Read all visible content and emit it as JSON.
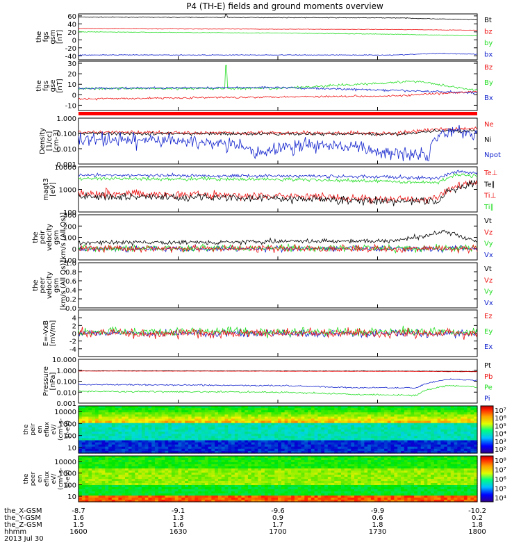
{
  "title": "P4 (TH-E) fields and ground moments overview",
  "colors": {
    "black": "#000000",
    "red": "#ee1111",
    "green": "#22dd22",
    "blue": "#1122cc",
    "darkred": "#cc0000"
  },
  "panels": [
    {
      "id": "fgs-gsm",
      "ylabel": [
        "the",
        "fgs",
        "gsm",
        "[nT]"
      ],
      "scale": "linear",
      "ylim": [
        -50,
        65
      ],
      "ticks": [
        "60",
        "40",
        "20",
        "0",
        "-20",
        "-40"
      ],
      "tick_values": [
        60,
        40,
        20,
        0,
        -20,
        -40
      ],
      "legend": [
        {
          "label": "Bt",
          "color": "#000000"
        },
        {
          "label": "bz",
          "color": "#ee1111"
        },
        {
          "label": "by",
          "color": "#22dd22"
        },
        {
          "label": "bx",
          "color": "#1122cc"
        }
      ],
      "series": [
        {
          "color": "#000000",
          "level": 57,
          "noise": 0.8,
          "drift": [
            [
              0,
              57
            ],
            [
              0.8,
              55
            ],
            [
              1,
              50
            ]
          ]
        },
        {
          "color": "#ee1111",
          "level": 27,
          "noise": 0.6,
          "drift": [
            [
              0,
              28
            ],
            [
              0.8,
              26
            ],
            [
              1,
              24
            ]
          ]
        },
        {
          "color": "#22dd22",
          "level": 20,
          "noise": 0.8,
          "drift": [
            [
              0,
              20
            ],
            [
              0.5,
              17
            ],
            [
              0.8,
              14
            ],
            [
              1,
              10
            ]
          ]
        },
        {
          "color": "#1122cc",
          "level": -38,
          "noise": 1.0,
          "drift": [
            [
              0,
              -38
            ],
            [
              0.8,
              -38
            ],
            [
              0.9,
              -34
            ],
            [
              1,
              -36
            ]
          ]
        }
      ]
    },
    {
      "id": "fgs-gse",
      "ylabel": [
        "the",
        "fgs",
        "gse",
        "[nT]"
      ],
      "scale": "linear",
      "ylim": [
        -15,
        32
      ],
      "ticks": [
        "30",
        "20",
        "10",
        "0",
        "-10"
      ],
      "tick_values": [
        30,
        20,
        10,
        0,
        -10
      ],
      "legend": [
        {
          "label": "Bz",
          "color": "#ee1111"
        },
        {
          "label": "By",
          "color": "#22dd22"
        },
        {
          "label": "Bx",
          "color": "#1122cc"
        }
      ],
      "series": [
        {
          "color": "#22dd22",
          "level": 6,
          "noise": 1.2,
          "drift": [
            [
              0,
              6
            ],
            [
              0.5,
              6
            ],
            [
              0.7,
              10
            ],
            [
              0.85,
              13
            ],
            [
              1,
              4
            ]
          ]
        },
        {
          "color": "#1122cc",
          "level": 6,
          "noise": 1.0,
          "drift": [
            [
              0,
              6
            ],
            [
              0.5,
              7
            ],
            [
              0.7,
              5
            ],
            [
              1,
              2
            ]
          ]
        },
        {
          "color": "#ee1111",
          "level": -4,
          "noise": 0.9,
          "drift": [
            [
              0,
              -4
            ],
            [
              0.5,
              -2
            ],
            [
              0.8,
              -1
            ],
            [
              1,
              3
            ]
          ]
        }
      ]
    },
    {
      "id": "density",
      "ylabel": [
        "Density",
        "[1/cc]",
        "[cm-3]"
      ],
      "scale": "log",
      "ylim": [
        0.001,
        1.0
      ],
      "ticks": [
        "1.000",
        "0.100",
        "0.010",
        "0.001"
      ],
      "tick_values": [
        1,
        0.1,
        0.01,
        0.001
      ],
      "legend": [
        {
          "label": "Ne",
          "color": "#ee1111"
        },
        {
          "label": "Ni",
          "color": "#000000"
        },
        {
          "label": "Npot",
          "color": "#1122cc"
        }
      ],
      "series": [
        {
          "color": "#ee1111",
          "level": 0.12,
          "noise": 0.25,
          "drift": [
            [
              0,
              0.12
            ],
            [
              0.8,
              0.1
            ],
            [
              0.92,
              0.2
            ],
            [
              1,
              0.2
            ]
          ]
        },
        {
          "color": "#000000",
          "level": 0.1,
          "noise": 0.2,
          "drift": [
            [
              0,
              0.1
            ],
            [
              0.8,
              0.09
            ],
            [
              0.92,
              0.15
            ],
            [
              1,
              0.15
            ]
          ]
        },
        {
          "color": "#1122cc",
          "level": 0.04,
          "noise": 0.9,
          "drift": [
            [
              0,
              0.04
            ],
            [
              0.3,
              0.03
            ],
            [
              0.45,
              0.005
            ],
            [
              0.6,
              0.02
            ],
            [
              0.75,
              0.006
            ],
            [
              0.88,
              0.005
            ],
            [
              0.93,
              0.15
            ],
            [
              1,
              0.12
            ]
          ]
        }
      ]
    },
    {
      "id": "temperature",
      "ylabel": [
        "magt3",
        "[eV]"
      ],
      "scale": "log",
      "ylim": [
        100,
        10000
      ],
      "ticks": [
        "10000",
        "1000",
        "100"
      ],
      "tick_values": [
        10000,
        1000,
        100
      ],
      "legend": [
        {
          "label": "Te⊥",
          "color": "#ee1111"
        },
        {
          "label": "Te∥",
          "color": "#000000"
        },
        {
          "label": "Ti⊥",
          "color": "#ee1111"
        },
        {
          "label": "Ti∥",
          "color": "#22dd22"
        }
      ],
      "series": [
        {
          "color": "#1122cc",
          "level": 4200,
          "noise": 0.15,
          "drift": [
            [
              0,
              4200
            ],
            [
              0.5,
              4000
            ],
            [
              0.8,
              3500
            ],
            [
              0.9,
              3000
            ],
            [
              0.95,
              6000
            ],
            [
              1,
              5500
            ]
          ]
        },
        {
          "color": "#22dd22",
          "level": 3000,
          "noise": 0.15,
          "drift": [
            [
              0,
              3000
            ],
            [
              0.5,
              2800
            ],
            [
              0.8,
              2200
            ],
            [
              0.9,
              2000
            ],
            [
              0.95,
              4500
            ],
            [
              1,
              4000
            ]
          ]
        },
        {
          "color": "#ee1111",
          "level": 700,
          "noise": 0.35,
          "drift": [
            [
              0,
              700
            ],
            [
              0.5,
              500
            ],
            [
              0.8,
              350
            ],
            [
              0.9,
              400
            ],
            [
              0.95,
              1500
            ],
            [
              1,
              2000
            ]
          ]
        },
        {
          "color": "#000000",
          "level": 500,
          "noise": 0.35,
          "drift": [
            [
              0,
              500
            ],
            [
              0.5,
              400
            ],
            [
              0.8,
              280
            ],
            [
              0.9,
              300
            ],
            [
              0.95,
              1200
            ],
            [
              1,
              1800
            ]
          ]
        }
      ]
    },
    {
      "id": "velocity-all",
      "ylabel": [
        "the",
        "peir",
        "velocity",
        "gsm",
        "[km/s (All Qs)]"
      ],
      "scale": "linear",
      "ylim": [
        -100,
        300
      ],
      "ticks": [
        "300",
        "200",
        "100",
        "0",
        "-100"
      ],
      "tick_values": [
        300,
        200,
        100,
        0,
        -100
      ],
      "legend": [
        {
          "label": "Vt",
          "color": "#000000"
        },
        {
          "label": "Vz",
          "color": "#ee1111"
        },
        {
          "label": "Vy",
          "color": "#22dd22"
        },
        {
          "label": "Vx",
          "color": "#1122cc"
        }
      ],
      "series": [
        {
          "color": "#1122cc",
          "level": 0,
          "noise": 25,
          "drift": [
            [
              0,
              0
            ],
            [
              1,
              0
            ]
          ]
        },
        {
          "color": "#22dd22",
          "level": 5,
          "noise": 30,
          "drift": [
            [
              0,
              5
            ],
            [
              1,
              5
            ]
          ]
        },
        {
          "color": "#ee1111",
          "level": 0,
          "noise": 30,
          "drift": [
            [
              0,
              0
            ],
            [
              1,
              0
            ]
          ]
        },
        {
          "color": "#000000",
          "level": 50,
          "noise": 20,
          "drift": [
            [
              0,
              50
            ],
            [
              0.8,
              70
            ],
            [
              0.92,
              150
            ],
            [
              1,
              60
            ]
          ]
        }
      ]
    },
    {
      "id": "velocity-peer",
      "ylabel": [
        "the",
        "peer",
        "velocity",
        "gsm",
        "[km/s (All Qs)]"
      ],
      "scale": "linear",
      "ylim": [
        0,
        1
      ],
      "ticks": [
        "1.0",
        "0.8",
        "0.6",
        "0.4",
        "0.2",
        "0.0"
      ],
      "tick_values": [
        1.0,
        0.8,
        0.6,
        0.4,
        0.2,
        0.0
      ],
      "legend": [
        {
          "label": "Vt",
          "color": "#000000"
        },
        {
          "label": "Vz",
          "color": "#ee1111"
        },
        {
          "label": "Vy",
          "color": "#22dd22"
        },
        {
          "label": "Vx",
          "color": "#1122cc"
        }
      ],
      "series": []
    },
    {
      "id": "e-field",
      "ylabel": [
        "E=-VxB",
        "[mV/m]"
      ],
      "scale": "linear",
      "ylim": [
        -6,
        6
      ],
      "ticks": [
        "4",
        "2",
        "0",
        "-2",
        "-4"
      ],
      "tick_values": [
        4,
        2,
        0,
        -2,
        -4
      ],
      "legend": [
        {
          "label": "Ez",
          "color": "#ee1111"
        },
        {
          "label": "Ey",
          "color": "#22dd22"
        },
        {
          "label": "Ex",
          "color": "#1122cc"
        }
      ],
      "series": [
        {
          "color": "#1122cc",
          "level": 0,
          "noise": 0.8,
          "drift": [
            [
              0,
              0
            ],
            [
              1,
              0
            ]
          ]
        },
        {
          "color": "#22dd22",
          "level": 0.4,
          "noise": 1.1,
          "drift": [
            [
              0,
              0.4
            ],
            [
              1,
              0.4
            ]
          ]
        },
        {
          "color": "#ee1111",
          "level": 0,
          "noise": 1.2,
          "drift": [
            [
              0,
              0
            ],
            [
              1,
              0
            ]
          ]
        }
      ]
    },
    {
      "id": "pressure",
      "ylabel": [
        "Pressure",
        "[nPa]"
      ],
      "scale": "log",
      "ylim": [
        0.001,
        10
      ],
      "ticks": [
        "10.000",
        "1.000",
        "0.100",
        "0.010",
        "0.001"
      ],
      "tick_values": [
        10,
        1,
        0.1,
        0.01,
        0.001
      ],
      "legend": [
        {
          "label": "Pt",
          "color": "#000000"
        },
        {
          "label": "Pb",
          "color": "#ee1111"
        },
        {
          "label": "Pe",
          "color": "#22dd22"
        },
        {
          "label": "Pi",
          "color": "#1122cc"
        }
      ],
      "series": [
        {
          "color": "#000000",
          "level": 0.9,
          "noise": 0.03,
          "drift": [
            [
              0,
              0.9
            ],
            [
              0.8,
              0.85
            ],
            [
              1,
              0.8
            ]
          ]
        },
        {
          "color": "#ee1111",
          "level": 0.85,
          "noise": 0.03,
          "drift": [
            [
              0,
              0.85
            ],
            [
              0.8,
              0.8
            ],
            [
              1,
              0.75
            ]
          ]
        },
        {
          "color": "#1122cc",
          "level": 0.05,
          "noise": 0.12,
          "drift": [
            [
              0,
              0.05
            ],
            [
              0.5,
              0.04
            ],
            [
              0.7,
              0.025
            ],
            [
              0.85,
              0.025
            ],
            [
              0.93,
              0.15
            ],
            [
              1,
              0.12
            ]
          ]
        },
        {
          "color": "#22dd22",
          "level": 0.012,
          "noise": 0.15,
          "drift": [
            [
              0,
              0.012
            ],
            [
              0.5,
              0.01
            ],
            [
              0.7,
              0.006
            ],
            [
              0.85,
              0.005
            ],
            [
              0.93,
              0.04
            ],
            [
              1,
              0.03
            ]
          ]
        }
      ]
    }
  ],
  "spectrograms": [
    {
      "id": "peir-eflux",
      "ylabel": [
        "the",
        "peir",
        "en",
        "eflux",
        "eV/",
        "(cm²-s-",
        "sr-eV)"
      ],
      "ticks": [
        "10000",
        "1000",
        "100",
        "10"
      ],
      "cbar_ticks": [
        "10⁷",
        "10⁶",
        "10⁵",
        "10⁴",
        "10³",
        "10²"
      ]
    },
    {
      "id": "peer-eflux",
      "ylabel": [
        "the",
        "peer",
        "en",
        "eflux",
        "eV/",
        "(cm²-s-",
        "sr-eV)"
      ],
      "ticks": [
        "10000",
        "1000",
        "100",
        "10"
      ],
      "cbar_ticks": [
        "10⁸",
        "10⁷",
        "10⁶",
        "10⁵",
        "10⁴"
      ]
    }
  ],
  "xaxis": {
    "rows": [
      {
        "label": "the_X-GSM",
        "values": [
          "-8.7",
          "-9.1",
          "-9.6",
          "-9.9",
          "-10.2"
        ]
      },
      {
        "label": "the_Y-GSM",
        "values": [
          "1.6",
          "1.3",
          "0.9",
          "0.6",
          "0.2"
        ]
      },
      {
        "label": "the_Z-GSM",
        "values": [
          "1.5",
          "1.6",
          "1.7",
          "1.8",
          "1.8"
        ]
      },
      {
        "label": "hhmm",
        "values": [
          "1600",
          "1630",
          "1700",
          "1730",
          "1800"
        ]
      }
    ],
    "date": "2013 Jul 30"
  },
  "chart_data": {
    "type": "line",
    "title": "P4 (TH-E) fields and ground moments overview",
    "x": [
      "1600",
      "1630",
      "1700",
      "1730",
      "1800"
    ],
    "xlabel": "hhmm",
    "series": [
      {
        "name": "Bt",
        "values": [
          57,
          57,
          56,
          55,
          50
        ]
      },
      {
        "name": "bz",
        "values": [
          28,
          28,
          27,
          26,
          24
        ]
      },
      {
        "name": "by",
        "values": [
          20,
          19,
          17,
          15,
          10
        ]
      },
      {
        "name": "bx",
        "values": [
          -38,
          -38,
          -38,
          -38,
          -36
        ]
      },
      {
        "name": "Ne",
        "values": [
          0.12,
          0.12,
          0.11,
          0.1,
          0.2
        ]
      },
      {
        "name": "Ni",
        "values": [
          0.1,
          0.1,
          0.1,
          0.09,
          0.15
        ]
      },
      {
        "name": "Npot",
        "values": [
          0.04,
          0.03,
          0.02,
          0.006,
          0.12
        ]
      },
      {
        "name": "Pt",
        "values": [
          0.9,
          0.9,
          0.85,
          0.85,
          0.8
        ]
      },
      {
        "name": "Pi",
        "values": [
          0.05,
          0.05,
          0.03,
          0.025,
          0.12
        ]
      },
      {
        "name": "Pe",
        "values": [
          0.012,
          0.012,
          0.007,
          0.005,
          0.03
        ]
      }
    ]
  }
}
